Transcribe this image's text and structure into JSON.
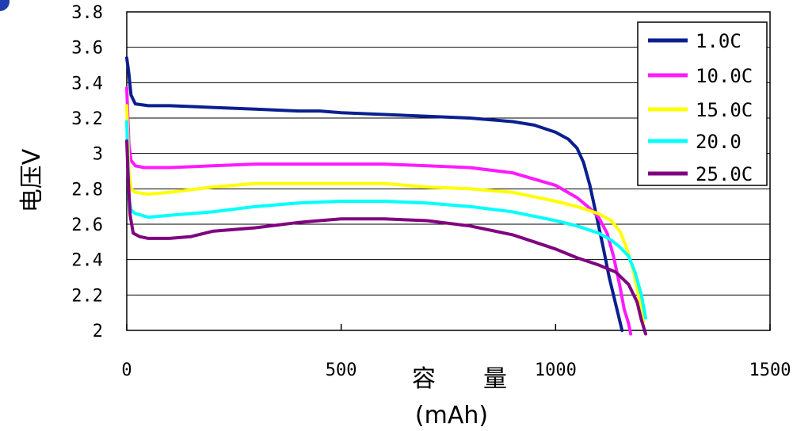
{
  "chart_data": {
    "type": "line",
    "xlabel_main": "容　　量",
    "xlabel_unit": "(mAh)",
    "ylabel": "电压V",
    "xlim": [
      0,
      1500
    ],
    "ylim": [
      2,
      3.8
    ],
    "x_ticks": [
      0,
      500,
      1000,
      1500
    ],
    "x_tick_labels": [
      "0",
      "500",
      "1000",
      "1500"
    ],
    "y_ticks": [
      2,
      2.2,
      2.4,
      2.6,
      2.8,
      3,
      3.2,
      3.4,
      3.6,
      3.8
    ],
    "y_tick_labels": [
      "2",
      "2.2",
      "2.4",
      "2.6",
      "2.8",
      "3",
      "3.2",
      "3.4",
      "3.6",
      "3.8"
    ],
    "grid": "horizontal",
    "legend_position": "top-right",
    "series": [
      {
        "name": "1.0C",
        "color": "#0a1f8f",
        "x": [
          0,
          5,
          10,
          20,
          50,
          100,
          200,
          300,
          400,
          450,
          500,
          600,
          700,
          800,
          850,
          900,
          950,
          1000,
          1030,
          1050,
          1065,
          1080,
          1095,
          1110,
          1125,
          1140,
          1150,
          1155
        ],
        "y": [
          3.54,
          3.45,
          3.33,
          3.28,
          3.27,
          3.27,
          3.26,
          3.25,
          3.24,
          3.24,
          3.23,
          3.22,
          3.21,
          3.2,
          3.19,
          3.18,
          3.16,
          3.12,
          3.08,
          3.03,
          2.95,
          2.82,
          2.65,
          2.48,
          2.3,
          2.15,
          2.05,
          2.0
        ]
      },
      {
        "name": "10.0C",
        "color": "#ff1aff",
        "x": [
          0,
          5,
          10,
          20,
          40,
          100,
          200,
          300,
          400,
          500,
          600,
          700,
          800,
          900,
          1000,
          1050,
          1080,
          1100,
          1120,
          1135,
          1150,
          1160,
          1170,
          1175
        ],
        "y": [
          3.37,
          3.05,
          2.96,
          2.93,
          2.92,
          2.92,
          2.93,
          2.94,
          2.94,
          2.94,
          2.94,
          2.93,
          2.92,
          2.89,
          2.82,
          2.75,
          2.69,
          2.64,
          2.55,
          2.42,
          2.25,
          2.12,
          2.04,
          1.98
        ]
      },
      {
        "name": "15.0C",
        "color": "#ffff00",
        "x": [
          0,
          5,
          10,
          20,
          50,
          100,
          200,
          300,
          400,
          500,
          600,
          700,
          800,
          900,
          1000,
          1050,
          1100,
          1130,
          1150,
          1165,
          1180,
          1195,
          1205
        ],
        "y": [
          3.27,
          2.9,
          2.8,
          2.78,
          2.77,
          2.78,
          2.81,
          2.83,
          2.83,
          2.83,
          2.83,
          2.81,
          2.8,
          2.78,
          2.73,
          2.7,
          2.66,
          2.62,
          2.56,
          2.47,
          2.35,
          2.18,
          2.05
        ]
      },
      {
        "name": "20.0",
        "color": "#00ffff",
        "x": [
          0,
          5,
          10,
          20,
          50,
          100,
          200,
          300,
          400,
          500,
          600,
          700,
          800,
          900,
          1000,
          1050,
          1100,
          1130,
          1150,
          1170,
          1185,
          1200,
          1210
        ],
        "y": [
          3.18,
          2.75,
          2.68,
          2.66,
          2.64,
          2.65,
          2.67,
          2.7,
          2.72,
          2.73,
          2.73,
          2.72,
          2.7,
          2.67,
          2.62,
          2.59,
          2.55,
          2.51,
          2.47,
          2.42,
          2.33,
          2.2,
          2.07
        ]
      },
      {
        "name": "25.0C",
        "color": "#800080",
        "x": [
          0,
          3,
          8,
          15,
          30,
          50,
          100,
          150,
          200,
          300,
          400,
          450,
          500,
          600,
          700,
          800,
          900,
          950,
          1000,
          1050,
          1100,
          1140,
          1170,
          1190,
          1200,
          1210
        ],
        "y": [
          3.07,
          2.88,
          2.65,
          2.55,
          2.53,
          2.52,
          2.52,
          2.53,
          2.56,
          2.58,
          2.61,
          2.62,
          2.63,
          2.63,
          2.62,
          2.59,
          2.54,
          2.5,
          2.46,
          2.41,
          2.37,
          2.33,
          2.26,
          2.16,
          2.06,
          1.98
        ]
      }
    ]
  }
}
